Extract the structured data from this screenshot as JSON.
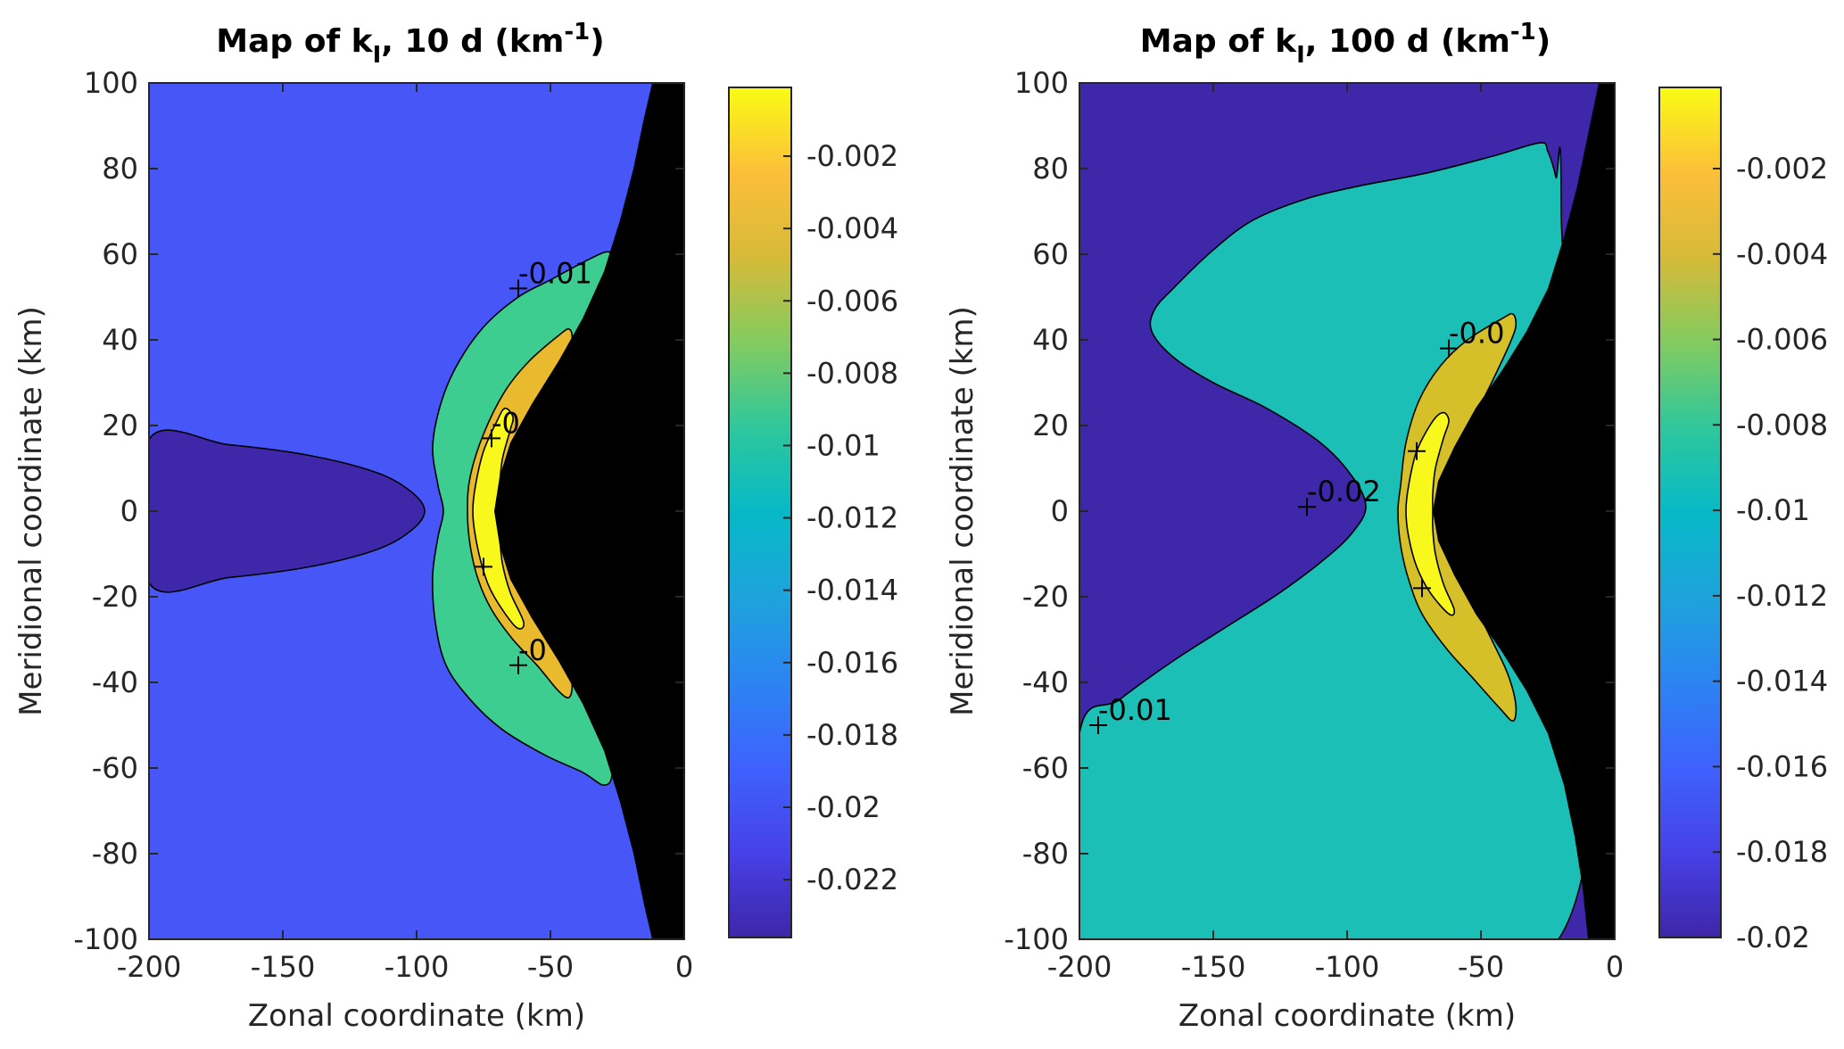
{
  "chart_data": [
    {
      "type": "heatmap",
      "subtype": "filled-contour",
      "title": "Map of k_I, 10 d (km^-1)",
      "title_parts": {
        "prefix": "Map of k",
        "subscript": "I",
        "middle": ", 10 d (km",
        "superscript": "-1",
        "suffix": ")"
      },
      "xlabel": "Zonal coordinate (km)",
      "ylabel": "Meridional coordinate (km)",
      "xlim": [
        -200,
        0
      ],
      "ylim": [
        -100,
        100
      ],
      "xticks": [
        -200,
        -150,
        -100,
        -50,
        0
      ],
      "yticks": [
        100,
        80,
        60,
        40,
        20,
        0,
        -20,
        -40,
        -60,
        -80,
        -100
      ],
      "grid": false,
      "colorbar": {
        "location": "right",
        "range": [
          -0.0236,
          -0.0001
        ],
        "ticks": [
          -0.002,
          -0.004,
          -0.006,
          -0.008,
          -0.01,
          -0.012,
          -0.014,
          -0.016,
          -0.018,
          -0.02,
          -0.022
        ],
        "tick_labels": [
          "-0.002",
          "-0.004",
          "-0.006",
          "-0.008",
          "-0.01",
          "-0.012",
          "-0.014",
          "-0.016",
          "-0.018",
          "-0.02",
          "-0.022"
        ]
      },
      "regions": [
        {
          "name": "background",
          "level": -0.019,
          "color": "#4757f7"
        },
        {
          "name": "core-low",
          "level": -0.0225,
          "color": "#3e27a9",
          "points": [
            [
              -200,
              16.7
            ],
            [
              -170,
              15.5
            ],
            [
              -140,
              13
            ],
            [
              -115,
              9
            ],
            [
              -102,
              4.5
            ],
            [
              -97,
              0
            ],
            [
              -102,
              -4.5
            ],
            [
              -115,
              -9
            ],
            [
              -140,
              -13
            ],
            [
              -170,
              -15.5
            ],
            [
              -200,
              -16.7
            ]
          ]
        },
        {
          "name": "band-green",
          "level": -0.0095,
          "color": "#3ecd90",
          "points": [
            [
              -28,
              60.5
            ],
            [
              -35,
              59
            ],
            [
              -50,
              54
            ],
            [
              -62,
              50
            ],
            [
              -75,
              43
            ],
            [
              -85,
              34
            ],
            [
              -91,
              25
            ],
            [
              -94,
              15
            ],
            [
              -92,
              6
            ],
            [
              -90,
              0
            ],
            [
              -92,
              -6
            ],
            [
              -94,
              -15
            ],
            [
              -93,
              -26
            ],
            [
              -89,
              -36
            ],
            [
              -80,
              -44
            ],
            [
              -68,
              -51
            ],
            [
              -52,
              -57
            ],
            [
              -38,
              -61
            ],
            [
              -30,
              -64
            ],
            [
              -27,
              -61
            ],
            [
              -30,
              -50
            ],
            [
              -36,
              -40
            ],
            [
              -43,
              -31
            ],
            [
              -50,
              -22
            ],
            [
              -56,
              -12
            ],
            [
              -58,
              -4
            ],
            [
              -58,
              0
            ],
            [
              -58,
              4
            ],
            [
              -56,
              12
            ],
            [
              -50,
              21
            ],
            [
              -43,
              30
            ],
            [
              -36,
              40
            ],
            [
              -31,
              50
            ],
            [
              -28,
              57
            ]
          ]
        },
        {
          "name": "band-orange",
          "level": -0.0045,
          "color": "#e9b92e",
          "points": [
            [
              -43,
              42.5
            ],
            [
              -47,
              41
            ],
            [
              -58,
              35
            ],
            [
              -67,
              28
            ],
            [
              -75,
              18
            ],
            [
              -80,
              8
            ],
            [
              -81,
              0
            ],
            [
              -80,
              -8
            ],
            [
              -77,
              -16
            ],
            [
              -72,
              -23
            ],
            [
              -64,
              -30
            ],
            [
              -55,
              -36
            ],
            [
              -47,
              -42
            ],
            [
              -43,
              -43.5
            ],
            [
              -42,
              -40
            ],
            [
              -45,
              -35
            ],
            [
              -52,
              -27
            ],
            [
              -60,
              -18
            ],
            [
              -66,
              -9
            ],
            [
              -68,
              -3
            ],
            [
              -68,
              0
            ],
            [
              -68,
              3
            ],
            [
              -66,
              9
            ],
            [
              -60,
              18
            ],
            [
              -52,
              27
            ],
            [
              -45,
              35
            ],
            [
              -42,
              40
            ]
          ]
        },
        {
          "name": "band-yellow",
          "level": -0.0015,
          "color": "#f8f81d",
          "points": [
            [
              -67,
              24
            ],
            [
              -70,
              21
            ],
            [
              -75,
              14
            ],
            [
              -78,
              6
            ],
            [
              -79,
              0
            ],
            [
              -78,
              -6
            ],
            [
              -75,
              -14
            ],
            [
              -71,
              -20
            ],
            [
              -63,
              -27
            ],
            [
              -60,
              -26
            ],
            [
              -65,
              -19
            ],
            [
              -68,
              -12
            ],
            [
              -69,
              -5
            ],
            [
              -69,
              0
            ],
            [
              -69,
              5
            ],
            [
              -68,
              12
            ],
            [
              -65,
              19
            ],
            [
              -64,
              22
            ]
          ]
        },
        {
          "name": "masked",
          "color": "#000000",
          "points": [
            [
              -12,
              100
            ],
            [
              0,
              100
            ],
            [
              0,
              -100
            ],
            [
              -12,
              -100
            ],
            [
              -15,
              -92
            ],
            [
              -19,
              -80
            ],
            [
              -24,
              -68
            ],
            [
              -30,
              -56
            ],
            [
              -38,
              -45
            ],
            [
              -47,
              -35
            ],
            [
              -57,
              -25
            ],
            [
              -65,
              -16
            ],
            [
              -69,
              -8
            ],
            [
              -71,
              0
            ],
            [
              -69,
              8
            ],
            [
              -65,
              16
            ],
            [
              -57,
              25
            ],
            [
              -47,
              35
            ],
            [
              -38,
              45
            ],
            [
              -30,
              56
            ],
            [
              -24,
              68
            ],
            [
              -19,
              80
            ],
            [
              -15,
              92
            ]
          ]
        }
      ],
      "contour_labels": [
        {
          "text": "-0.01",
          "x": -62,
          "y": 52
        },
        {
          "text": "-0",
          "x": -72,
          "y": 17
        },
        {
          "text": "-0",
          "x": -62,
          "y": -36
        },
        {
          "text": "",
          "x": -75,
          "y": -13
        }
      ]
    },
    {
      "type": "heatmap",
      "subtype": "filled-contour",
      "title": "Map of k_I, 100 d (km^-1)",
      "title_parts": {
        "prefix": "Map of k",
        "subscript": "I",
        "middle": ", 100 d (km",
        "superscript": "-1",
        "suffix": ")"
      },
      "xlabel": "Zonal coordinate (km)",
      "ylabel": "Meridional coordinate (km)",
      "xlim": [
        -200,
        0
      ],
      "ylim": [
        -100,
        100
      ],
      "xticks": [
        -200,
        -150,
        -100,
        -50,
        0
      ],
      "yticks": [
        100,
        80,
        60,
        40,
        20,
        0,
        -20,
        -40,
        -60,
        -80,
        -100
      ],
      "grid": false,
      "colorbar": {
        "location": "right",
        "range": [
          -0.02,
          -0.0001
        ],
        "ticks": [
          -0.002,
          -0.004,
          -0.006,
          -0.008,
          -0.01,
          -0.012,
          -0.014,
          -0.016,
          -0.018,
          -0.02
        ],
        "tick_labels": [
          "-0.002",
          "-0.004",
          "-0.006",
          "-0.008",
          "-0.01",
          "-0.012",
          "-0.014",
          "-0.016",
          "-0.018",
          "-0.02"
        ]
      },
      "regions": [
        {
          "name": "background",
          "level": -0.0195,
          "color": "#3e27a9"
        },
        {
          "name": "band-teal",
          "level": -0.0105,
          "color": "#1bbfb6",
          "points": [
            [
              -200,
              -52
            ],
            [
              -185,
              -44
            ],
            [
              -165,
              -35
            ],
            [
              -145,
              -27
            ],
            [
              -125,
              -19
            ],
            [
              -108,
              -11
            ],
            [
              -98,
              -5
            ],
            [
              -93,
              1
            ],
            [
              -98,
              8
            ],
            [
              -110,
              16
            ],
            [
              -130,
              24
            ],
            [
              -150,
              30
            ],
            [
              -165,
              36
            ],
            [
              -173,
              42
            ],
            [
              -172,
              47
            ],
            [
              -165,
              52
            ],
            [
              -150,
              61
            ],
            [
              -135,
              68
            ],
            [
              -115,
              73
            ],
            [
              -95,
              76
            ],
            [
              -70,
              79
            ],
            [
              -45,
              83
            ],
            [
              -28,
              86
            ],
            [
              -25,
              84
            ],
            [
              -22,
              78
            ],
            [
              -20,
              70
            ],
            [
              -21,
              -100
            ],
            [
              -200,
              -100
            ]
          ]
        },
        {
          "name": "band-olive",
          "level": -0.0045,
          "color": "#d5c02a",
          "points": [
            [
              -38,
              46
            ],
            [
              -42,
              45
            ],
            [
              -55,
              40
            ],
            [
              -65,
              34
            ],
            [
              -73,
              26
            ],
            [
              -78,
              16
            ],
            [
              -80,
              6
            ],
            [
              -81,
              0
            ],
            [
              -80,
              -8
            ],
            [
              -77,
              -16
            ],
            [
              -72,
              -24
            ],
            [
              -63,
              -32
            ],
            [
              -53,
              -39
            ],
            [
              -43,
              -46
            ],
            [
              -38,
              -49
            ],
            [
              -37,
              -45
            ],
            [
              -40,
              -38
            ],
            [
              -46,
              -30
            ],
            [
              -53,
              -21
            ],
            [
              -59,
              -11
            ],
            [
              -61,
              -3
            ],
            [
              -61,
              0
            ],
            [
              -61,
              3
            ],
            [
              -59,
              11
            ],
            [
              -53,
              21
            ],
            [
              -46,
              30
            ],
            [
              -40,
              38
            ],
            [
              -37,
              43
            ]
          ]
        },
        {
          "name": "band-yellow",
          "level": -0.0015,
          "color": "#f8f81d",
          "points": [
            [
              -64,
              23
            ],
            [
              -68,
              21
            ],
            [
              -74,
              14
            ],
            [
              -77,
              6
            ],
            [
              -78,
              0
            ],
            [
              -77,
              -6
            ],
            [
              -74,
              -13
            ],
            [
              -69,
              -19
            ],
            [
              -62,
              -24
            ],
            [
              -60,
              -23
            ],
            [
              -64,
              -17
            ],
            [
              -67,
              -10
            ],
            [
              -68,
              -4
            ],
            [
              -68,
              0
            ],
            [
              -68,
              4
            ],
            [
              -67,
              10
            ],
            [
              -64,
              17
            ],
            [
              -62,
              21
            ]
          ]
        },
        {
          "name": "masked",
          "color": "#000000",
          "points": [
            [
              -6,
              100
            ],
            [
              0,
              100
            ],
            [
              0,
              -100
            ],
            [
              -10,
              -100
            ],
            [
              -12,
              -88
            ],
            [
              -15,
              -76
            ],
            [
              -19,
              -64
            ],
            [
              -25,
              -52
            ],
            [
              -33,
              -42
            ],
            [
              -42,
              -33
            ],
            [
              -52,
              -24
            ],
            [
              -60,
              -15
            ],
            [
              -66,
              -7
            ],
            [
              -68,
              0
            ],
            [
              -66,
              7
            ],
            [
              -60,
              15
            ],
            [
              -52,
              24
            ],
            [
              -42,
              33
            ],
            [
              -33,
              42
            ],
            [
              -25,
              52
            ],
            [
              -19,
              64
            ],
            [
              -14,
              76
            ],
            [
              -10,
              88
            ]
          ]
        }
      ],
      "contour_labels": [
        {
          "text": "-0.0",
          "x": -62,
          "y": 38
        },
        {
          "text": "-0.02",
          "x": -115,
          "y": 1
        },
        {
          "text": "-0.01",
          "x": -193,
          "y": -50
        },
        {
          "text": "",
          "x": -72,
          "y": -18
        },
        {
          "text": "",
          "x": -74,
          "y": 14
        }
      ]
    }
  ]
}
